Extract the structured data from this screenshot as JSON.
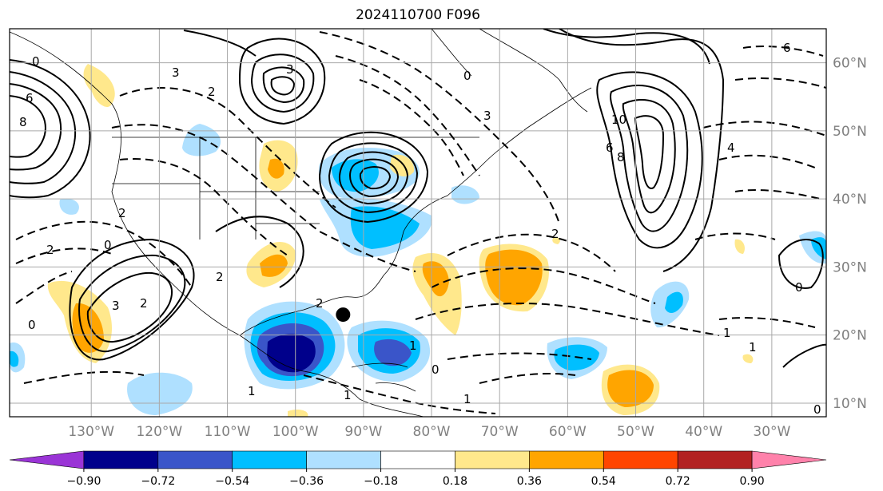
{
  "title": "2024110700 F096",
  "map": {
    "projection": "equirectangular",
    "lon_range": [
      -142,
      -22
    ],
    "lat_range": [
      8,
      65
    ],
    "lon_ticks": [
      "130°W",
      "120°W",
      "110°W",
      "100°W",
      "90°W",
      "80°W",
      "70°W",
      "60°W",
      "50°W",
      "40°W",
      "30°W"
    ],
    "lat_ticks": [
      "10°N",
      "20°N",
      "30°N",
      "40°N",
      "50°N",
      "60°N"
    ],
    "marker": {
      "lon": -93,
      "lat": 23,
      "color": "#000000"
    },
    "contour_labels": [
      "0",
      "6",
      "8",
      "3",
      "2",
      "3",
      "6",
      "10",
      "8",
      "6",
      "4",
      "2",
      "0",
      "0",
      "3",
      "2",
      "1",
      "1",
      "0",
      "2",
      "2",
      "1",
      "0",
      "2",
      "3",
      "1",
      "1",
      "0",
      "2",
      "0",
      "1"
    ]
  },
  "colorbar": {
    "colors": [
      "#9a34d6",
      "#00008b",
      "#3a55c9",
      "#00bfff",
      "#afe0ff",
      "#ffffff",
      "#ffe88c",
      "#ffa500",
      "#ff4500",
      "#b22222",
      "#ff82ab"
    ],
    "tick_labels": [
      "−0.90",
      "−0.72",
      "−0.54",
      "−0.36",
      "−0.18",
      "0.18",
      "0.36",
      "0.54",
      "0.72",
      "0.90"
    ]
  },
  "colors": {
    "grid": "#a9a9a9",
    "contour": "#000000",
    "tick_label": "#808080"
  }
}
